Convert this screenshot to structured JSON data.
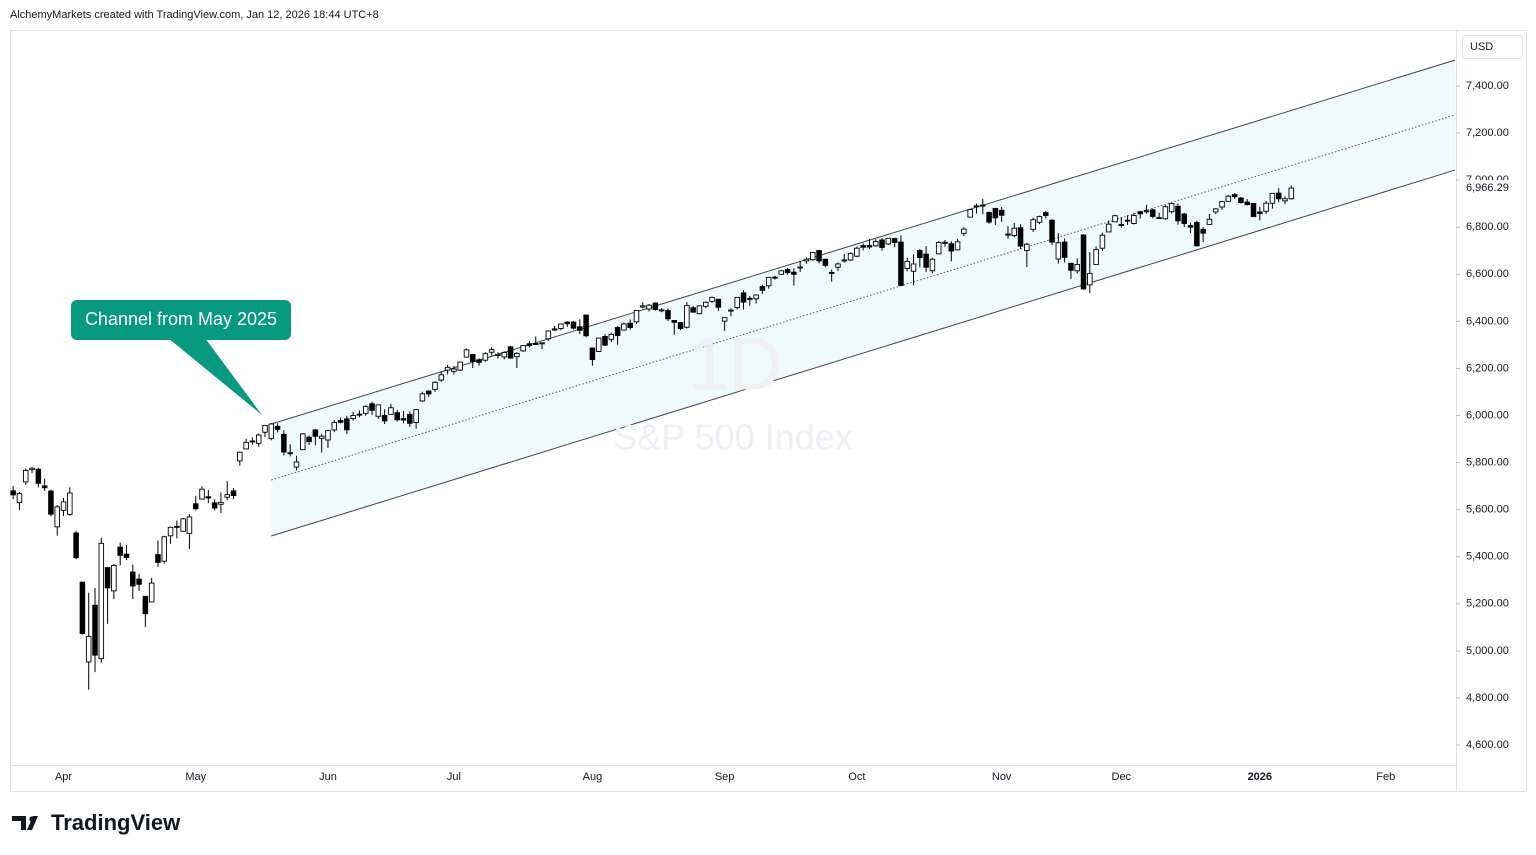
{
  "header": "AlchemyMarkets created with TradingView.com, Jan 12, 2026 18:44 UTC+8",
  "brand": "TradingView",
  "chart_data": {
    "type": "candlestick",
    "title": "S&P 500 Index",
    "interval": "1D",
    "currency": "USD",
    "annotation": "Channel from May 2025",
    "up_color": "#ffffff",
    "down_color": "#000000",
    "channel_fill": "#eefafb",
    "annotation_color": "#089981",
    "xlim": [
      -0.5,
      229
    ],
    "ylim": [
      4409,
      7638
    ],
    "xticks": [
      {
        "value": 8,
        "label": "Apr"
      },
      {
        "value": 29,
        "label": "May"
      },
      {
        "value": 50,
        "label": "Jun"
      },
      {
        "value": 70,
        "label": "Jul"
      },
      {
        "value": 92,
        "label": "Aug"
      },
      {
        "value": 113,
        "label": "Sep"
      },
      {
        "value": 134,
        "label": "Oct"
      },
      {
        "value": 157,
        "label": "Nov"
      },
      {
        "value": 176,
        "label": "Dec"
      },
      {
        "value": 198,
        "label": "2026"
      },
      {
        "value": 218,
        "label": "Feb"
      }
    ],
    "yticks": [
      {
        "value": 4600,
        "label": "4,600.00"
      },
      {
        "value": 4800,
        "label": "4,800.00"
      },
      {
        "value": 5000,
        "label": "5,000.00"
      },
      {
        "value": 5200,
        "label": "5,200.00"
      },
      {
        "value": 5400,
        "label": "5,400.00"
      },
      {
        "value": 5600,
        "label": "5,600.00"
      },
      {
        "value": 5800,
        "label": "5,800.00"
      },
      {
        "value": 6000,
        "label": "6,000.00"
      },
      {
        "value": 6200,
        "label": "6,200.00"
      },
      {
        "value": 6400,
        "label": "6,400.00"
      },
      {
        "value": 6600,
        "label": "6,600.00"
      },
      {
        "value": 6800,
        "label": "6,800.00"
      },
      {
        "value": 7000,
        "label": "7,000.00"
      },
      {
        "value": 7200,
        "label": "7,200.00"
      },
      {
        "value": 7400,
        "label": "7,400.00"
      }
    ],
    "channel": {
      "x": [
        41,
        229
      ],
      "upper": [
        5964,
        7510
      ],
      "middle": [
        5726,
        7277
      ],
      "lower": [
        5488,
        7043
      ]
    },
    "last_price_label": "6,966.29",
    "candles": [
      [
        5680,
        5700,
        5645,
        5663
      ],
      [
        5630,
        5675,
        5598,
        5668
      ],
      [
        5718,
        5775,
        5705,
        5767
      ],
      [
        5770,
        5782,
        5755,
        5776
      ],
      [
        5772,
        5778,
        5695,
        5712
      ],
      [
        5701,
        5732,
        5680,
        5693
      ],
      [
        5679,
        5685,
        5572,
        5581
      ],
      [
        5527,
        5620,
        5489,
        5612
      ],
      [
        5597,
        5650,
        5574,
        5633
      ],
      [
        5580,
        5695,
        5575,
        5671
      ],
      [
        5501,
        5510,
        5390,
        5396
      ],
      [
        5292,
        5293,
        5070,
        5074
      ],
      [
        4953,
        5247,
        4835,
        5062
      ],
      [
        5194,
        5267,
        4910,
        4982
      ],
      [
        4967,
        5481,
        4950,
        5457
      ],
      [
        5354,
        5354,
        5115,
        5268
      ],
      [
        5255,
        5369,
        5220,
        5363
      ],
      [
        5441,
        5460,
        5363,
        5406
      ],
      [
        5411,
        5450,
        5386,
        5397
      ],
      [
        5335,
        5367,
        5220,
        5276
      ],
      [
        5305,
        5328,
        5255,
        5283
      ],
      [
        5232,
        5232,
        5101,
        5158
      ],
      [
        5208,
        5310,
        5208,
        5288
      ],
      [
        5409,
        5469,
        5357,
        5376
      ],
      [
        5381,
        5489,
        5371,
        5485
      ],
      [
        5489,
        5528,
        5455,
        5525
      ],
      [
        5529,
        5554,
        5478,
        5529
      ],
      [
        5508,
        5565,
        5507,
        5561
      ],
      [
        5499,
        5581,
        5433,
        5569
      ],
      [
        5625,
        5659,
        5597,
        5604
      ],
      [
        5645,
        5700,
        5644,
        5687
      ],
      [
        5655,
        5684,
        5628,
        5650
      ],
      [
        5629,
        5644,
        5597,
        5607
      ],
      [
        5623,
        5673,
        5585,
        5631
      ],
      [
        5653,
        5721,
        5640,
        5664
      ],
      [
        5680,
        5691,
        5645,
        5660
      ],
      [
        5807,
        5847,
        5787,
        5844
      ],
      [
        5858,
        5901,
        5856,
        5886
      ],
      [
        5891,
        5907,
        5876,
        5892
      ],
      [
        5882,
        5924,
        5867,
        5917
      ],
      [
        5929,
        5959,
        5908,
        5958
      ],
      [
        5903,
        5968,
        5895,
        5964
      ],
      [
        5954,
        5967,
        5928,
        5941
      ],
      [
        5920,
        5938,
        5830,
        5845
      ],
      [
        5841,
        5878,
        5826,
        5842
      ],
      [
        5781,
        5829,
        5767,
        5803
      ],
      [
        5855,
        5925,
        5855,
        5922
      ],
      [
        5908,
        5915,
        5875,
        5889
      ],
      [
        5939,
        5943,
        5874,
        5912
      ],
      [
        5903,
        5922,
        5843,
        5912
      ],
      [
        5896,
        5939,
        5862,
        5936
      ],
      [
        5939,
        5981,
        5929,
        5970
      ],
      [
        5979,
        5991,
        5966,
        5971
      ],
      [
        5986,
        5999,
        5921,
        5939
      ],
      [
        5987,
        6016,
        5978,
        6000
      ],
      [
        6005,
        6022,
        5993,
        6006
      ],
      [
        6009,
        6044,
        5999,
        6038
      ],
      [
        6050,
        6059,
        6002,
        6022
      ],
      [
        5997,
        6045,
        5987,
        6045
      ],
      [
        6000,
        6027,
        5964,
        5977
      ],
      [
        6005,
        6050,
        6004,
        6033
      ],
      [
        6012,
        6024,
        5974,
        5982
      ],
      [
        5987,
        6019,
        5967,
        5981
      ],
      [
        6005,
        6018,
        5952,
        5967
      ],
      [
        5970,
        6028,
        5944,
        6025
      ],
      [
        6062,
        6101,
        6058,
        6092
      ],
      [
        6104,
        6108,
        6079,
        6092
      ],
      [
        6111,
        6146,
        6101,
        6141
      ],
      [
        6151,
        6188,
        6143,
        6173
      ],
      [
        6193,
        6215,
        6175,
        6205
      ],
      [
        6188,
        6211,
        6174,
        6198
      ],
      [
        6193,
        6228,
        6190,
        6227
      ],
      [
        6248,
        6285,
        6248,
        6279
      ],
      [
        6259,
        6262,
        6202,
        6230
      ],
      [
        6237,
        6243,
        6212,
        6226
      ],
      [
        6235,
        6269,
        6228,
        6263
      ],
      [
        6269,
        6291,
        6256,
        6280
      ],
      [
        6255,
        6269,
        6242,
        6260
      ],
      [
        6249,
        6273,
        6239,
        6268
      ],
      [
        6292,
        6296,
        6242,
        6244
      ],
      [
        6250,
        6270,
        6202,
        6264
      ],
      [
        6275,
        6299,
        6270,
        6297
      ],
      [
        6305,
        6316,
        6290,
        6297
      ],
      [
        6304,
        6336,
        6302,
        6306
      ],
      [
        6306,
        6310,
        6282,
        6309
      ],
      [
        6326,
        6360,
        6317,
        6359
      ],
      [
        6368,
        6381,
        6360,
        6363
      ],
      [
        6370,
        6390,
        6362,
        6389
      ],
      [
        6397,
        6401,
        6376,
        6390
      ],
      [
        6397,
        6402,
        6365,
        6371
      ],
      [
        6377,
        6409,
        6346,
        6362
      ],
      [
        6427,
        6427,
        6332,
        6339
      ],
      [
        6287,
        6287,
        6212,
        6238
      ],
      [
        6272,
        6330,
        6271,
        6329
      ],
      [
        6336,
        6346,
        6296,
        6299
      ],
      [
        6324,
        6352,
        6312,
        6345
      ],
      [
        6374,
        6379,
        6301,
        6340
      ],
      [
        6363,
        6395,
        6361,
        6389
      ],
      [
        6392,
        6408,
        6365,
        6374
      ],
      [
        6398,
        6446,
        6389,
        6446
      ],
      [
        6461,
        6481,
        6455,
        6466
      ],
      [
        6453,
        6474,
        6442,
        6469
      ],
      [
        6478,
        6481,
        6446,
        6450
      ],
      [
        6445,
        6456,
        6439,
        6449
      ],
      [
        6446,
        6456,
        6401,
        6411
      ],
      [
        6404,
        6404,
        6343,
        6396
      ],
      [
        6395,
        6397,
        6363,
        6370
      ],
      [
        6375,
        6482,
        6370,
        6467
      ],
      [
        6458,
        6466,
        6438,
        6439
      ],
      [
        6433,
        6466,
        6429,
        6466
      ],
      [
        6464,
        6485,
        6457,
        6481
      ],
      [
        6485,
        6505,
        6478,
        6502
      ],
      [
        6494,
        6496,
        6444,
        6460
      ],
      [
        6401,
        6417,
        6360,
        6416
      ],
      [
        6445,
        6455,
        6422,
        6448
      ],
      [
        6459,
        6503,
        6451,
        6502
      ],
      [
        6521,
        6533,
        6450,
        6482
      ],
      [
        6498,
        6508,
        6466,
        6495
      ],
      [
        6496,
        6513,
        6476,
        6512
      ],
      [
        6548,
        6555,
        6517,
        6532
      ],
      [
        6551,
        6588,
        6539,
        6587
      ],
      [
        6588,
        6594,
        6578,
        6584
      ],
      [
        6600,
        6616,
        6598,
        6615
      ],
      [
        6620,
        6627,
        6599,
        6607
      ],
      [
        6609,
        6626,
        6552,
        6600
      ],
      [
        6627,
        6657,
        6610,
        6631
      ],
      [
        6657,
        6672,
        6645,
        6664
      ],
      [
        6662,
        6694,
        6657,
        6693
      ],
      [
        6701,
        6703,
        6646,
        6657
      ],
      [
        6664,
        6667,
        6630,
        6638
      ],
      [
        6608,
        6620,
        6569,
        6605
      ],
      [
        6630,
        6650,
        6614,
        6644
      ],
      [
        6661,
        6686,
        6650,
        6661
      ],
      [
        6661,
        6693,
        6657,
        6688
      ],
      [
        6677,
        6718,
        6673,
        6711
      ],
      [
        6722,
        6731,
        6702,
        6715
      ],
      [
        6722,
        6750,
        6708,
        6716
      ],
      [
        6721,
        6749,
        6717,
        6740
      ],
      [
        6746,
        6754,
        6700,
        6714
      ],
      [
        6729,
        6753,
        6725,
        6753
      ],
      [
        6752,
        6755,
        6715,
        6735
      ],
      [
        6737,
        6765,
        6550,
        6553
      ],
      [
        6625,
        6671,
        6612,
        6655
      ],
      [
        6613,
        6685,
        6553,
        6644
      ],
      [
        6701,
        6708,
        6630,
        6671
      ],
      [
        6686,
        6720,
        6610,
        6630
      ],
      [
        6615,
        6670,
        6604,
        6664
      ],
      [
        6687,
        6741,
        6685,
        6735
      ],
      [
        6736,
        6746,
        6717,
        6735
      ],
      [
        6730,
        6740,
        6655,
        6699
      ],
      [
        6704,
        6751,
        6702,
        6738
      ],
      [
        6774,
        6800,
        6763,
        6792
      ],
      [
        6843,
        6876,
        6843,
        6875
      ],
      [
        6891,
        6900,
        6858,
        6891
      ],
      [
        6894,
        6920,
        6855,
        6890
      ],
      [
        6863,
        6867,
        6815,
        6822
      ],
      [
        6880,
        6882,
        6810,
        6840
      ],
      [
        6872,
        6886,
        6823,
        6851
      ],
      [
        6767,
        6804,
        6751,
        6771
      ],
      [
        6765,
        6818,
        6757,
        6796
      ],
      [
        6798,
        6813,
        6708,
        6720
      ],
      [
        6701,
        6734,
        6631,
        6728
      ],
      [
        6791,
        6841,
        6780,
        6832
      ],
      [
        6821,
        6849,
        6813,
        6846
      ],
      [
        6862,
        6869,
        6838,
        6850
      ],
      [
        6830,
        6834,
        6724,
        6737
      ],
      [
        6665,
        6775,
        6646,
        6734
      ],
      [
        6737,
        6752,
        6650,
        6672
      ],
      [
        6647,
        6648,
        6581,
        6617
      ],
      [
        6615,
        6668,
        6604,
        6642
      ],
      [
        6767,
        6771,
        6534,
        6538
      ],
      [
        6555,
        6694,
        6521,
        6603
      ],
      [
        6642,
        6718,
        6642,
        6705
      ],
      [
        6711,
        6777,
        6699,
        6766
      ],
      [
        6780,
        6829,
        6780,
        6813
      ],
      [
        6823,
        6853,
        6823,
        6849
      ],
      [
        6812,
        6843,
        6799,
        6812
      ],
      [
        6830,
        6851,
        6810,
        6829
      ],
      [
        6816,
        6862,
        6812,
        6850
      ],
      [
        6866,
        6870,
        6837,
        6857
      ],
      [
        6866,
        6895,
        6858,
        6870
      ],
      [
        6874,
        6879,
        6838,
        6846
      ],
      [
        6841,
        6862,
        6838,
        6840
      ],
      [
        6836,
        6894,
        6832,
        6887
      ],
      [
        6866,
        6904,
        6858,
        6901
      ],
      [
        6889,
        6900,
        6811,
        6827
      ],
      [
        6856,
        6861,
        6801,
        6816
      ],
      [
        6807,
        6820,
        6776,
        6800
      ],
      [
        6820,
        6828,
        6720,
        6721
      ],
      [
        6791,
        6801,
        6737,
        6775
      ],
      [
        6812,
        6857,
        6812,
        6834
      ],
      [
        6865,
        6881,
        6856,
        6878
      ],
      [
        6886,
        6912,
        6874,
        6909
      ],
      [
        6910,
        6937,
        6910,
        6932
      ],
      [
        6939,
        6945,
        6921,
        6930
      ],
      [
        6924,
        6929,
        6900,
        6905
      ],
      [
        6907,
        6920,
        6893,
        6896
      ],
      [
        6901,
        6902,
        6845,
        6845
      ],
      [
        6865,
        6887,
        6829,
        6858
      ],
      [
        6868,
        6912,
        6856,
        6902
      ],
      [
        6902,
        6945,
        6879,
        6944
      ],
      [
        6945,
        6966,
        6906,
        6921
      ],
      [
        6912,
        6931,
        6898,
        6921
      ],
      [
        6921,
        6978,
        6917,
        6966.29
      ]
    ]
  }
}
